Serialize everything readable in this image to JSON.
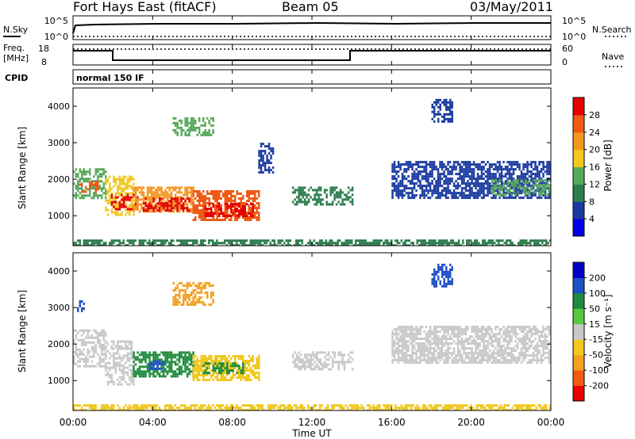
{
  "header": {
    "station": "Fort Hays East (fitACF)",
    "beam": "Beam 05",
    "date": "03/May/2011"
  },
  "top_panels": {
    "nsky_label": "N.Sky",
    "nsearch_label": "N.Search",
    "freq_label_1": "Freq.",
    "freq_label_2": "[MHz]",
    "nave_label": "Nave",
    "cpid_label": "CPID",
    "cpid_value": "normal 150 IF",
    "noise_ticks_left": [
      "10^5",
      "10^0"
    ],
    "noise_ticks_right": [
      "10^5",
      "10^0"
    ],
    "freq_ticks": [
      "18",
      "8"
    ],
    "nave_ticks": [
      "60",
      "0"
    ]
  },
  "colors": {
    "power_scale": [
      "#0000e6",
      "#1a3aa0",
      "#2e7d4e",
      "#58a85c",
      "#f0c81e",
      "#f5961e",
      "#f05a14",
      "#e60000"
    ],
    "velocity_scale": [
      "#e60000",
      "#f05a14",
      "#f5a01e",
      "#f0c81e",
      "#c8c8c8",
      "#5ac83c",
      "#1e8c3c",
      "#1e50c8",
      "#0000c8"
    ]
  },
  "chart_data": [
    {
      "type": "heatmap",
      "panel": "power",
      "ylabel": "Slant Range [km]",
      "colorbar_label": "Power [dB]",
      "colorbar_ticks": [
        "4",
        "8",
        "12",
        "16",
        "20",
        "24",
        "28"
      ],
      "x_tick_labels": [
        "00:00",
        "04:00",
        "08:00",
        "12:00",
        "16:00",
        "20:00",
        "00:00"
      ],
      "xlim": [
        0,
        24
      ],
      "y_tick_labels": [
        "1000",
        "2000",
        "3000",
        "4000"
      ],
      "ylim": [
        180,
        4500
      ],
      "patches": [
        {
          "t": [
            0.0,
            1.6
          ],
          "r": [
            1500,
            2300
          ],
          "v": 14
        },
        {
          "t": [
            0.3,
            1.2
          ],
          "r": [
            1650,
            1950
          ],
          "v": 24
        },
        {
          "t": [
            1.6,
            3.0
          ],
          "r": [
            1050,
            2100
          ],
          "v": 16
        },
        {
          "t": [
            1.9,
            3.2
          ],
          "r": [
            1150,
            1600
          ],
          "v": 28
        },
        {
          "t": [
            3.0,
            6.0
          ],
          "r": [
            1100,
            1800
          ],
          "v": 22
        },
        {
          "t": [
            3.5,
            5.8
          ],
          "r": [
            1150,
            1500
          ],
          "v": 30
        },
        {
          "t": [
            6.0,
            9.3
          ],
          "r": [
            900,
            1700
          ],
          "v": 26
        },
        {
          "t": [
            6.6,
            9.0
          ],
          "r": [
            1000,
            1350
          ],
          "v": 30
        },
        {
          "t": [
            5.0,
            7.0
          ],
          "r": [
            3200,
            3700
          ],
          "v": 12
        },
        {
          "t": [
            9.3,
            10.0
          ],
          "r": [
            2200,
            3000
          ],
          "v": 4
        },
        {
          "t": [
            11.0,
            14.0
          ],
          "r": [
            1300,
            1800
          ],
          "v": 10
        },
        {
          "t": [
            16.0,
            24.0
          ],
          "r": [
            1500,
            2500
          ],
          "v": 5
        },
        {
          "t": [
            21.0,
            24.0
          ],
          "r": [
            1600,
            2000
          ],
          "v": 12
        },
        {
          "t": [
            18.0,
            19.0
          ],
          "r": [
            3600,
            4200
          ],
          "v": 4
        },
        {
          "t": [
            0.0,
            24.0
          ],
          "r": [
            180,
            350
          ],
          "v": 8
        }
      ]
    },
    {
      "type": "heatmap",
      "panel": "velocity",
      "ylabel": "Slant Range [km]",
      "colorbar_label": "Velocity [m s⁻¹]",
      "colorbar_ticks": [
        "-200",
        "-100",
        "-50",
        "-15",
        "15",
        "50",
        "100",
        "200"
      ],
      "x_tick_labels": [
        "00:00",
        "04:00",
        "08:00",
        "12:00",
        "16:00",
        "20:00",
        "00:00"
      ],
      "xlim": [
        0,
        24
      ],
      "y_tick_labels": [
        "1000",
        "2000",
        "3000",
        "4000"
      ],
      "ylim": [
        180,
        4500
      ],
      "xlabel": "Time UT",
      "patches": [
        {
          "t": [
            0.0,
            1.6
          ],
          "r": [
            1400,
            2400
          ],
          "v": 0
        },
        {
          "t": [
            1.6,
            3.0
          ],
          "r": [
            900,
            2100
          ],
          "v": 0
        },
        {
          "t": [
            3.0,
            6.0
          ],
          "r": [
            1100,
            1800
          ],
          "v": 60
        },
        {
          "t": [
            3.8,
            4.5
          ],
          "r": [
            1300,
            1550
          ],
          "v": 150
        },
        {
          "t": [
            6.0,
            9.3
          ],
          "r": [
            1000,
            1700
          ],
          "v": -40
        },
        {
          "t": [
            6.5,
            8.5
          ],
          "r": [
            1200,
            1500
          ],
          "v": 60
        },
        {
          "t": [
            5.0,
            7.0
          ],
          "r": [
            3100,
            3700
          ],
          "v": -90
        },
        {
          "t": [
            0.2,
            0.5
          ],
          "r": [
            2900,
            3200
          ],
          "v": 150
        },
        {
          "t": [
            11.0,
            14.0
          ],
          "r": [
            1300,
            1800
          ],
          "v": 0
        },
        {
          "t": [
            16.0,
            24.0
          ],
          "r": [
            1500,
            2500
          ],
          "v": 0
        },
        {
          "t": [
            18.0,
            19.0
          ],
          "r": [
            3600,
            4200
          ],
          "v": 200
        },
        {
          "t": [
            0.0,
            24.0
          ],
          "r": [
            180,
            350
          ],
          "v": -30
        }
      ]
    }
  ]
}
